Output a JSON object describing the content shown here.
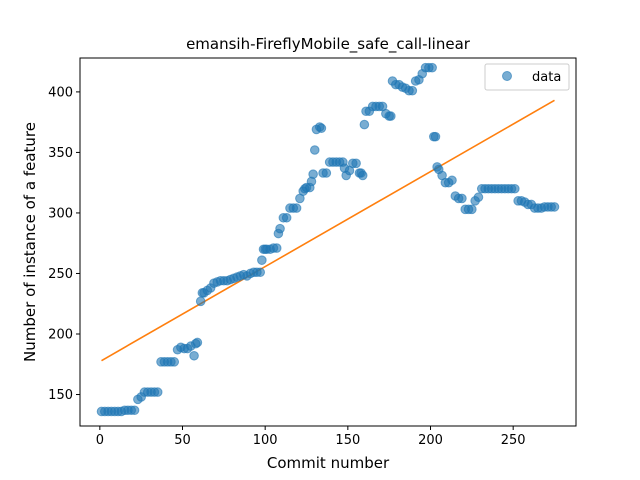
{
  "chart_data": {
    "type": "scatter",
    "title": "emansih-FireflyMobile_safe_call-linear",
    "xlabel": "Commit number",
    "ylabel": "Number of instance of a feature",
    "xlim": [
      -12,
      288
    ],
    "ylim": [
      124,
      428
    ],
    "xticks": [
      0,
      50,
      100,
      150,
      200,
      250
    ],
    "yticks": [
      150,
      200,
      250,
      300,
      350,
      400
    ],
    "grid": false,
    "legend_position": "top-right",
    "colors": {
      "data": "#1f77b4",
      "fit": "#ff7f0e"
    },
    "series": [
      {
        "name": "data",
        "kind": "scatter",
        "x": [
          1,
          3,
          5,
          7,
          9,
          11,
          13,
          15,
          17,
          19,
          21,
          23,
          25,
          27,
          29,
          31,
          33,
          35,
          37,
          39,
          41,
          43,
          45,
          47,
          49,
          51,
          53,
          55,
          57,
          58,
          59,
          61,
          62,
          63,
          65,
          67,
          69,
          71,
          73,
          75,
          77,
          79,
          81,
          83,
          85,
          87,
          89,
          91,
          93,
          95,
          97,
          98,
          99,
          100,
          101,
          103,
          105,
          107,
          108,
          109,
          111,
          113,
          115,
          117,
          119,
          121,
          123,
          124,
          125,
          127,
          128,
          129,
          130,
          131,
          133,
          134,
          135,
          137,
          139,
          141,
          143,
          145,
          147,
          148,
          149,
          151,
          153,
          155,
          157,
          158,
          159,
          160,
          161,
          163,
          165,
          167,
          169,
          171,
          173,
          175,
          176,
          177,
          179,
          181,
          183,
          185,
          187,
          189,
          191,
          193,
          195,
          197,
          199,
          201,
          202,
          203,
          204,
          205,
          207,
          209,
          211,
          213,
          215,
          217,
          219,
          221,
          223,
          225,
          227,
          229,
          231,
          233,
          235,
          237,
          239,
          241,
          243,
          245,
          247,
          249,
          251,
          253,
          255,
          257,
          259,
          261,
          263,
          265,
          267,
          269,
          271,
          273,
          275
        ],
        "y": [
          136,
          136,
          136,
          136,
          136,
          136,
          136,
          137,
          137,
          137,
          137,
          146,
          148,
          152,
          152,
          152,
          152,
          152,
          177,
          177,
          177,
          177,
          177,
          187,
          189,
          188,
          188,
          190,
          182,
          192,
          193,
          227,
          234,
          234,
          236,
          238,
          242,
          243,
          244,
          244,
          244,
          245,
          246,
          247,
          248,
          249,
          248,
          250,
          251,
          251,
          251,
          261,
          270,
          270,
          270,
          270,
          271,
          271,
          283,
          287,
          296,
          296,
          304,
          304,
          304,
          312,
          318,
          320,
          321,
          321,
          326,
          332,
          352,
          369,
          371,
          370,
          333,
          333,
          342,
          342,
          342,
          342,
          342,
          337,
          331,
          335,
          341,
          341,
          333,
          333,
          331,
          373,
          384,
          384,
          388,
          388,
          388,
          388,
          382,
          380,
          380,
          409,
          406,
          406,
          404,
          403,
          401,
          401,
          409,
          410,
          415,
          420,
          420,
          420,
          363,
          363,
          338,
          336,
          331,
          325,
          325,
          327,
          314,
          312,
          312,
          303,
          303,
          303,
          310,
          313,
          320,
          320,
          320,
          320,
          320,
          320,
          320,
          320,
          320,
          320,
          320,
          310,
          310,
          309,
          307,
          307,
          304,
          304,
          304,
          305,
          305,
          305,
          305
        ]
      },
      {
        "name": "",
        "kind": "line",
        "x": [
          1,
          275
        ],
        "y": [
          178,
          393
        ]
      }
    ]
  }
}
